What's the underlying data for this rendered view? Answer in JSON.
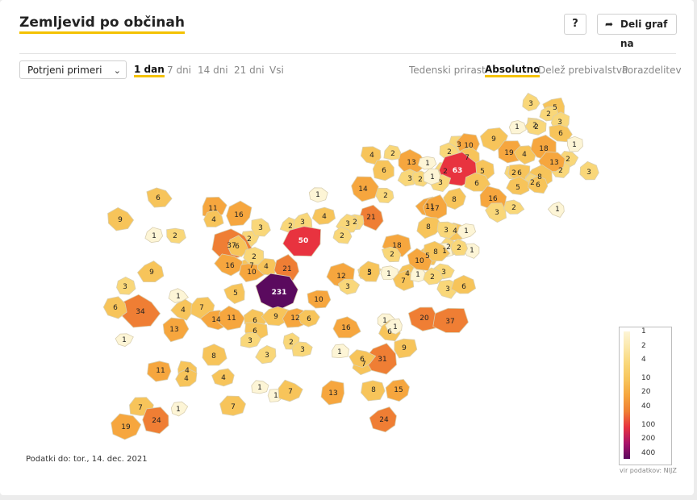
{
  "header": {
    "title": "Zemljevid po občinah",
    "help_label": "?",
    "share_label": "Deli graf na"
  },
  "controls": {
    "select_value": "Potrjeni primeri",
    "periods": [
      "1 dan",
      "7 dni",
      "14 dni",
      "21 dni",
      "Vsi"
    ],
    "active_period": 0,
    "modes": [
      "Tedenski prirast",
      "Absolutno",
      "Delež prebivalstva",
      "Porazdelitev"
    ],
    "active_mode": 1
  },
  "legend": {
    "values": [
      "1",
      "2",
      "4",
      "10",
      "20",
      "40",
      "100",
      "200",
      "400"
    ],
    "colors": [
      "#fdf5d6",
      "#fbe7a8",
      "#f9d779",
      "#f7c45a",
      "#f6a63e",
      "#ef7e34",
      "#e8333f",
      "#a8126a",
      "#5a0a5e"
    ]
  },
  "colors": {
    "accent": "#f4c200",
    "border": "#d9cfb0",
    "no_data": "#ffffff"
  },
  "map": {
    "municipalities": [
      {
        "v": 3
      },
      {
        "v": 5
      },
      {
        "v": 2
      },
      {
        "v": 2
      },
      {
        "v": 3
      },
      {
        "v": 1
      },
      {
        "v": 2
      },
      {
        "v": 6
      },
      {
        "v": 1
      },
      {
        "v": 3
      },
      {
        "v": 10
      },
      {
        "v": 9
      },
      {
        "v": 2
      },
      {
        "v": 19
      },
      {
        "v": 4
      },
      {
        "v": 18
      },
      {
        "v": 2
      },
      {
        "v": 2
      },
      {
        "v": 7
      },
      {
        "v": 5
      },
      {
        "v": 2
      },
      {
        "v": 63
      },
      {
        "v": 13
      },
      {
        "v": 2
      },
      {
        "v": 6
      },
      {
        "v": 6
      },
      {
        "v": 8
      },
      {
        "v": 2
      },
      {
        "v": 13
      },
      {
        "v": 4
      },
      {
        "v": 2
      },
      {
        "v": 6
      },
      {
        "v": 3
      },
      {
        "v": 2
      },
      {
        "v": 1
      },
      {
        "v": 3
      },
      {
        "v": 1
      },
      {
        "v": 14
      },
      {
        "v": 2
      },
      {
        "v": 8
      },
      {
        "v": 11
      },
      {
        "v": 16
      },
      {
        "v": 5
      },
      {
        "v": 6
      },
      {
        "v": 17
      },
      {
        "v": 3
      },
      {
        "v": 2
      },
      {
        "v": 1
      },
      {
        "v": 3
      },
      {
        "v": 6
      },
      {
        "v": 2
      },
      {
        "v": 1
      },
      {
        "v": 11
      },
      {
        "v": 4
      },
      {
        "v": 16
      },
      {
        "v": 1
      },
      {
        "v": 21
      },
      {
        "v": 2
      },
      {
        "v": 4
      },
      {
        "v": 3
      },
      {
        "v": 2
      },
      {
        "v": 2
      },
      {
        "v": 3
      },
      {
        "v": 8
      },
      {
        "v": 4
      },
      {
        "v": 9
      },
      {
        "v": 2
      },
      {
        "v": 37
      },
      {
        "v": 3
      },
      {
        "v": 50
      },
      {
        "v": 18
      },
      {
        "v": 3
      },
      {
        "v": 5
      },
      {
        "v": 2
      },
      {
        "v": 1
      },
      {
        "v": 1
      },
      {
        "v": 2
      },
      {
        "v": 1
      },
      {
        "v": 8
      },
      {
        "v": 2
      },
      {
        "v": 16
      },
      {
        "v": 6
      },
      {
        "v": 7
      },
      {
        "v": 10
      },
      {
        "v": 4
      },
      {
        "v": 2
      },
      {
        "v": 9
      },
      {
        "v": 21
      },
      {
        "v": 12
      },
      {
        "v": 3
      },
      {
        "v": 3
      },
      {
        "v": 5
      },
      {
        "v": 1
      },
      {
        "v": 4
      },
      {
        "v": 7
      },
      {
        "v": 1
      },
      {
        "v": 3
      },
      {
        "v": 2
      },
      {
        "v": 10
      },
      {
        "v": 3
      },
      {
        "v": 6
      },
      {
        "v": 231
      },
      {
        "v": 10
      },
      {
        "v": 34
      },
      {
        "v": 4
      },
      {
        "v": 7
      },
      {
        "v": 3
      },
      {
        "v": 6
      },
      {
        "v": 1
      },
      {
        "v": 5
      },
      {
        "v": 1
      },
      {
        "v": 14
      },
      {
        "v": 11
      },
      {
        "v": 6
      },
      {
        "v": 9
      },
      {
        "v": 6
      },
      {
        "v": 12
      },
      {
        "v": 6
      },
      {
        "v": 16
      },
      {
        "v": 1
      },
      {
        "v": 6
      },
      {
        "v": 1
      },
      {
        "v": 20
      },
      {
        "v": 37
      },
      {
        "v": 13
      },
      {
        "v": 4
      },
      {
        "v": 8
      },
      {
        "v": 9
      },
      {
        "v": 3
      },
      {
        "v": 3
      },
      {
        "v": 2
      },
      {
        "v": 3
      },
      {
        "v": 1
      },
      {
        "v": 7
      },
      {
        "v": 31
      },
      {
        "v": 6
      },
      {
        "v": 11
      },
      {
        "v": 4
      },
      {
        "v": 1
      },
      {
        "v": 8
      },
      {
        "v": 4
      },
      {
        "v": 15
      },
      {
        "v": 1
      },
      {
        "v": 7
      },
      {
        "v": 13
      },
      {
        "v": 24
      },
      {
        "v": 7
      },
      {
        "v": 19
      },
      {
        "v": 24
      },
      {
        "v": 1
      },
      {
        "v": 7
      }
    ]
  },
  "footer": {
    "data_note": "Podatki do: tor., 14. dec. 2021",
    "source": "vir podatkov: NIJZ"
  }
}
